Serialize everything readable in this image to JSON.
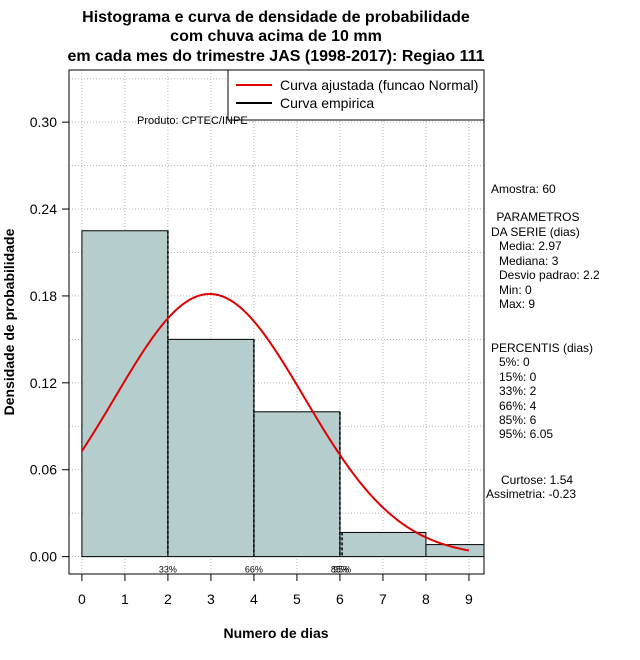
{
  "chart_data": {
    "type": "bar",
    "title_lines": [
      "Histograma e curva de densidade de probabilidade",
      "com chuva acima de 10 mm",
      "em cada mes do trimestre JAS (1998-2017): Regiao 111"
    ],
    "xlabel": "Numero de dias",
    "ylabel": "Densidade de probabilidade",
    "xlim": [
      -0.3,
      9.35
    ],
    "ylim": [
      -0.012,
      0.336
    ],
    "x_ticks": [
      "0",
      "1",
      "2",
      "3",
      "4",
      "5",
      "6",
      "7",
      "8",
      "9"
    ],
    "y_ticks": [
      "0.00",
      "0.06",
      "0.12",
      "0.18",
      "0.24",
      "0.30"
    ],
    "grid": true,
    "bins": [
      {
        "from": 0,
        "to": 2,
        "density": 0.225
      },
      {
        "from": 2,
        "to": 4,
        "density": 0.15
      },
      {
        "from": 4,
        "to": 6,
        "density": 0.1
      },
      {
        "from": 6,
        "to": 8,
        "density": 0.0167
      },
      {
        "from": 8,
        "to": 10,
        "density": 0.0083
      }
    ],
    "normal_curve": {
      "mean": 2.97,
      "sd": 2.2,
      "x_from": 0,
      "x_to": 9
    },
    "percentile_markers": [
      {
        "x": 2,
        "label": "33%"
      },
      {
        "x": 4,
        "label": "66%"
      },
      {
        "x": 6,
        "label": "85%"
      },
      {
        "x": 6.05,
        "label": "95%"
      }
    ],
    "legend": {
      "position": "top-right",
      "entries": [
        {
          "label": "Curva ajustada (funcao Normal)",
          "color": "#e00000"
        },
        {
          "label": "Curva empirica",
          "color": "#000000"
        }
      ]
    },
    "credit": "Produto: CPTEC/INPE",
    "colors": {
      "bar_fill": "#b6cdcd",
      "curve": "#e00000",
      "grid": "#b4b4b4"
    }
  },
  "stats_panel": [
    "Amostra: 60",
    " PARAMETROS",
    "DA SERIE (dias)",
    "Media: 2.97",
    "Mediana: 3",
    "Desvio padrao: 2.2",
    "Min: 0",
    "Max: 9",
    "PERCENTIS (dias)",
    "5%: 0",
    "15%: 0",
    "33%: 2",
    "66%: 4",
    "85%: 6",
    "95%: 6.05",
    "Curtose: 1.54",
    "Assimetria: -0.23"
  ]
}
